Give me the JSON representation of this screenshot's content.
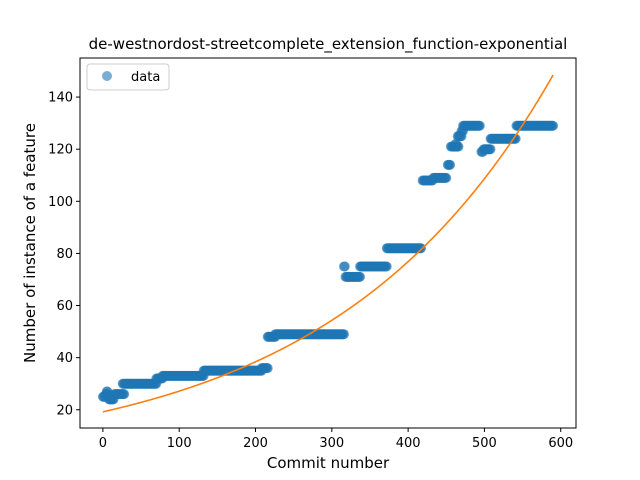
{
  "chart_data": {
    "type": "scatter",
    "title": "de-westnordost-streetcomplete_extension_function-exponential",
    "xlabel": "Commit number",
    "ylabel": "Number of instance of a feature",
    "xlim": [
      -30,
      620
    ],
    "ylim": [
      13,
      155
    ],
    "xticks": [
      0,
      100,
      200,
      300,
      400,
      500,
      600
    ],
    "yticks": [
      20,
      40,
      60,
      80,
      100,
      120,
      140
    ],
    "legend": {
      "position": "top-left",
      "entries": [
        "data"
      ]
    },
    "colors": {
      "data": "#1f77b4",
      "fit": "#ff7f0e"
    },
    "series": [
      {
        "name": "data",
        "kind": "scatter",
        "segments": [
          {
            "x_start": 0,
            "x_end": 3,
            "y": 25
          },
          {
            "x_start": 4,
            "x_end": 7,
            "y": 26
          },
          {
            "x_start": 5,
            "x_end": 6,
            "y": 27
          },
          {
            "x_start": 8,
            "x_end": 14,
            "y": 24
          },
          {
            "x_start": 15,
            "x_end": 28,
            "y": 26
          },
          {
            "x_start": 26,
            "x_end": 70,
            "y": 30
          },
          {
            "x_start": 70,
            "x_end": 78,
            "y": 32
          },
          {
            "x_start": 78,
            "x_end": 132,
            "y": 33
          },
          {
            "x_start": 132,
            "x_end": 208,
            "y": 35
          },
          {
            "x_start": 208,
            "x_end": 216,
            "y": 36
          },
          {
            "x_start": 216,
            "x_end": 226,
            "y": 48
          },
          {
            "x_start": 226,
            "x_end": 316,
            "y": 49
          },
          {
            "x_start": 316,
            "x_end": 317,
            "y": 75
          },
          {
            "x_start": 318,
            "x_end": 337,
            "y": 71
          },
          {
            "x_start": 337,
            "x_end": 372,
            "y": 75
          },
          {
            "x_start": 372,
            "x_end": 417,
            "y": 82
          },
          {
            "x_start": 419,
            "x_end": 432,
            "y": 108
          },
          {
            "x_start": 433,
            "x_end": 450,
            "y": 109
          },
          {
            "x_start": 452,
            "x_end": 455,
            "y": 114
          },
          {
            "x_start": 456,
            "x_end": 466,
            "y": 121
          },
          {
            "x_start": 462,
            "x_end": 463,
            "y": 122
          },
          {
            "x_start": 465,
            "x_end": 470,
            "y": 125
          },
          {
            "x_start": 470,
            "x_end": 472,
            "y": 127
          },
          {
            "x_start": 472,
            "x_end": 494,
            "y": 129
          },
          {
            "x_start": 496,
            "x_end": 498,
            "y": 119
          },
          {
            "x_start": 499,
            "x_end": 508,
            "y": 120
          },
          {
            "x_start": 508,
            "x_end": 541,
            "y": 124
          },
          {
            "x_start": 542,
            "x_end": 590,
            "y": 129
          }
        ]
      },
      {
        "name": "fit",
        "kind": "line",
        "function": "exponential",
        "x_range": [
          0,
          590
        ],
        "y_start": 19.2,
        "y_end": 148.5
      }
    ]
  }
}
